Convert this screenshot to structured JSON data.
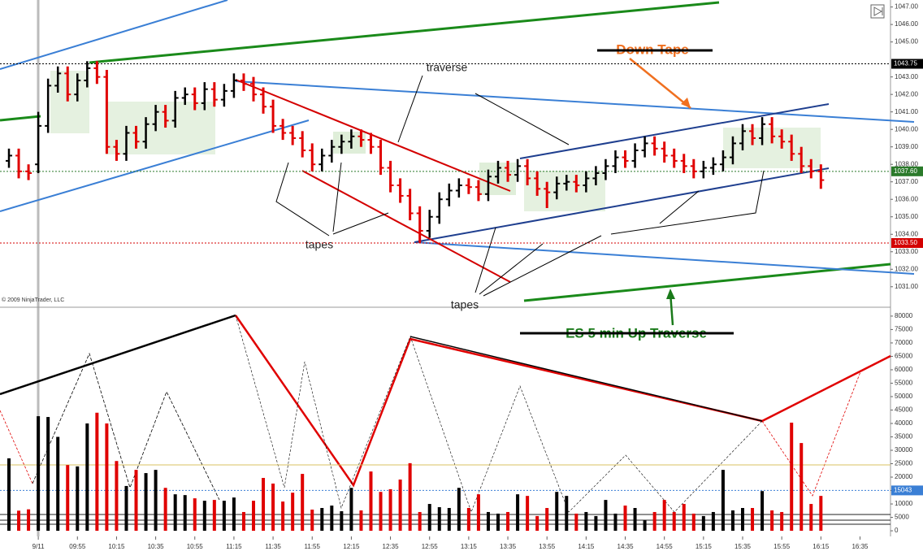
{
  "chart_data": [
    {
      "type": "ohlc",
      "categories": [
        null,
        null,
        null,
        "9/11",
        null,
        null,
        null,
        "09:55",
        null,
        null,
        null,
        "10:15",
        null,
        null,
        null,
        "10:35",
        null,
        null,
        null,
        "10:55",
        null,
        null,
        null,
        "11:15",
        null,
        null,
        null,
        "11:35",
        null,
        null,
        null,
        "11:55",
        null,
        null,
        null,
        "12:15",
        null,
        null,
        null,
        "12:35",
        null,
        null,
        null,
        "12:55",
        null,
        null,
        null,
        "13:15",
        null,
        null,
        null,
        "13:35",
        null,
        null,
        null,
        "13:55",
        null,
        null,
        null,
        "14:15",
        null,
        null,
        null,
        "14:35",
        null,
        null,
        null,
        "14:55",
        null,
        null,
        null,
        "15:15",
        null,
        null,
        null,
        "15:35",
        null,
        null,
        null,
        "15:55",
        null,
        null,
        null,
        "16:15",
        null,
        null,
        null,
        "16:35"
      ],
      "open": [
        1038.2,
        1038.5,
        1037.6,
        1038.0,
        1040.2,
        1042.5,
        1043.2,
        1042.0,
        1042.8,
        1043.5,
        1043.0,
        1039.0,
        1038.6,
        1039.8,
        1039.3,
        1040.3,
        1041.0,
        1040.5,
        1041.8,
        1042.0,
        1041.5,
        1042.3,
        1041.7,
        1042.2,
        1042.8,
        1042.6,
        1042.0,
        1041.3,
        1040.2,
        1039.8,
        1039.5,
        1038.8,
        1038.0,
        1038.5,
        1039.0,
        1039.3,
        1039.6,
        1039.4,
        1039.0,
        1037.8,
        1036.8,
        1036.2,
        1035.2,
        1034.2,
        1035.0,
        1036.0,
        1036.5,
        1036.8,
        1036.7,
        1036.3,
        1037.3,
        1037.8,
        1037.4,
        1037.9,
        1037.2,
        1036.6,
        1036.4,
        1036.9,
        1037.0,
        1036.8,
        1037.2,
        1037.5,
        1037.9,
        1038.4,
        1038.2,
        1038.8,
        1039.2,
        1038.9,
        1038.5,
        1038.2,
        1037.9,
        1037.6,
        1037.8,
        1038.0,
        1038.4,
        1039.2,
        1039.9,
        1039.5,
        1040.3,
        1039.6,
        1039.3,
        1038.6,
        1037.9,
        1037.6,
        null,
        null,
        null,
        null
      ],
      "high": [
        1038.9,
        1038.9,
        1038.0,
        1041.0,
        1042.9,
        1043.6,
        1043.6,
        1043.2,
        1043.9,
        1043.9,
        1043.4,
        1039.4,
        1040.2,
        1040.2,
        1040.7,
        1041.4,
        1041.4,
        1042.2,
        1042.4,
        1042.4,
        1042.7,
        1042.7,
        1042.6,
        1043.2,
        1043.2,
        1043.0,
        1042.4,
        1041.7,
        1040.6,
        1040.2,
        1039.9,
        1039.2,
        1038.9,
        1039.4,
        1039.7,
        1040.0,
        1040.0,
        1039.8,
        1039.4,
        1038.2,
        1037.2,
        1036.6,
        1035.6,
        1035.4,
        1036.4,
        1036.9,
        1037.2,
        1037.2,
        1037.1,
        1037.7,
        1038.2,
        1038.2,
        1038.3,
        1038.3,
        1037.6,
        1037.0,
        1037.3,
        1037.4,
        1037.4,
        1037.6,
        1037.9,
        1038.3,
        1038.8,
        1038.8,
        1039.2,
        1039.6,
        1039.6,
        1039.3,
        1038.9,
        1038.6,
        1038.3,
        1038.2,
        1038.4,
        1038.8,
        1039.6,
        1040.3,
        1040.3,
        1040.7,
        1040.7,
        1040.0,
        1039.7,
        1039.0,
        1038.3,
        1038.0,
        null,
        null,
        null,
        null
      ],
      "low": [
        1037.8,
        1037.2,
        1037.1,
        1037.5,
        1039.8,
        1042.1,
        1041.6,
        1041.6,
        1042.4,
        1042.6,
        1038.6,
        1038.2,
        1038.2,
        1038.9,
        1038.9,
        1039.9,
        1040.1,
        1040.1,
        1041.4,
        1041.1,
        1041.1,
        1041.3,
        1041.3,
        1041.8,
        1042.2,
        1041.6,
        1040.9,
        1039.8,
        1039.4,
        1039.1,
        1038.4,
        1037.6,
        1037.6,
        1038.1,
        1038.6,
        1038.9,
        1039.0,
        1038.6,
        1037.4,
        1036.4,
        1035.8,
        1034.8,
        1033.5,
        1033.8,
        1034.6,
        1035.6,
        1036.1,
        1036.3,
        1035.9,
        1035.9,
        1036.9,
        1037.0,
        1037.0,
        1036.8,
        1036.2,
        1035.5,
        1036.0,
        1036.5,
        1036.4,
        1036.4,
        1036.8,
        1037.1,
        1037.5,
        1037.8,
        1037.8,
        1038.4,
        1038.5,
        1038.1,
        1037.8,
        1037.5,
        1037.2,
        1037.2,
        1037.4,
        1037.6,
        1038.0,
        1038.8,
        1039.1,
        1039.1,
        1039.2,
        1038.9,
        1038.2,
        1037.5,
        1037.2,
        1036.6,
        null,
        null,
        null,
        null
      ],
      "close": [
        1038.5,
        1037.6,
        1037.5,
        1040.2,
        1042.5,
        1043.2,
        1042.0,
        1042.8,
        1043.5,
        1043.0,
        1039.0,
        1038.6,
        1039.8,
        1039.3,
        1040.3,
        1041.0,
        1040.5,
        1041.8,
        1042.0,
        1041.5,
        1042.3,
        1041.7,
        1042.2,
        1042.8,
        1042.6,
        1042.0,
        1041.3,
        1040.2,
        1039.8,
        1039.5,
        1038.8,
        1038.0,
        1038.5,
        1039.0,
        1039.3,
        1039.6,
        1039.4,
        1039.0,
        1037.8,
        1036.8,
        1036.2,
        1035.2,
        1034.2,
        1035.0,
        1036.0,
        1036.5,
        1036.8,
        1036.7,
        1036.3,
        1037.3,
        1037.8,
        1037.4,
        1037.9,
        1037.2,
        1036.6,
        1036.4,
        1036.9,
        1037.0,
        1036.8,
        1037.2,
        1037.5,
        1037.9,
        1038.4,
        1038.2,
        1038.8,
        1039.2,
        1038.9,
        1038.5,
        1038.2,
        1037.9,
        1037.6,
        1037.8,
        1038.0,
        1038.4,
        1039.2,
        1039.9,
        1039.5,
        1040.3,
        1039.6,
        1039.3,
        1038.6,
        1037.9,
        1037.6,
        1037.1,
        null,
        null,
        null,
        null
      ],
      "up_color": "#000000",
      "down_color": "#e00000",
      "ylim": [
        1030.2,
        1047.4
      ],
      "yticks": [
        {
          "value": 1047,
          "label": "1047.00"
        },
        {
          "value": 1046,
          "label": "1046.00"
        },
        {
          "value": 1045,
          "label": "1045.00"
        },
        {
          "value": 1043,
          "label": "1043.00"
        },
        {
          "value": 1042,
          "label": "1042.00"
        },
        {
          "value": 1041,
          "label": "1041.00"
        },
        {
          "value": 1040,
          "label": "1040.00"
        },
        {
          "value": 1039,
          "label": "1039.00"
        },
        {
          "value": 1038,
          "label": "1038.00"
        },
        {
          "value": 1037,
          "label": "1037.00"
        },
        {
          "value": 1036,
          "label": "1036.00"
        },
        {
          "value": 1035,
          "label": "1035.00"
        },
        {
          "value": 1034,
          "label": "1034.00"
        },
        {
          "value": 1033,
          "label": "1033.00"
        },
        {
          "value": 1032,
          "label": "1032.00"
        },
        {
          "value": 1031,
          "label": "1031.00"
        }
      ],
      "markers": [
        {
          "value": 1043.75,
          "label": "1043.75",
          "color": "#000000"
        },
        {
          "value": 1037.6,
          "label": "1037.60",
          "color": "#2a7a2a"
        },
        {
          "value": 1033.5,
          "label": "1033.50",
          "color": "#d40000"
        }
      ],
      "annotations": [
        "traverse",
        "tapes",
        "tapes",
        "Down Tape",
        "ES 5 min Up Traverse"
      ],
      "copyright": "© 2009 NinjaTrader, LLC"
    },
    {
      "type": "bar",
      "values": [
        27000,
        7500,
        8000,
        42700,
        42400,
        35000,
        24500,
        24000,
        40000,
        44000,
        40000,
        26000,
        16700,
        22700,
        21500,
        22700,
        16000,
        13600,
        13300,
        12100,
        11200,
        11500,
        11200,
        12400,
        7000,
        11200,
        19700,
        17600,
        10900,
        14200,
        21200,
        7900,
        8500,
        9400,
        7300,
        16000,
        7600,
        22100,
        14500,
        15500,
        19100,
        25200,
        7000,
        10000,
        8800,
        8500,
        16000,
        8500,
        13600,
        7000,
        6400,
        7000,
        13600,
        13000,
        5500,
        8500,
        14500,
        13000,
        6400,
        7000,
        5500,
        11500,
        6400,
        9400,
        8500,
        3900,
        7000,
        11500,
        7000,
        10000,
        6400,
        5500,
        7000,
        22700,
        7600,
        8500,
        8500,
        14800,
        7600,
        7000,
        40300,
        32700,
        10000,
        13000,
        null,
        null,
        null,
        null
      ],
      "ylim": [
        -2100,
        82700
      ],
      "yticks": [
        80000,
        75000,
        70000,
        65000,
        60000,
        55000,
        50000,
        45000,
        40000,
        35000,
        30000,
        25000,
        20000,
        15000,
        10000,
        5000,
        0
      ],
      "markers": [
        {
          "value": 15043,
          "label": "15043",
          "color": "#3a7fd5"
        }
      ]
    }
  ]
}
